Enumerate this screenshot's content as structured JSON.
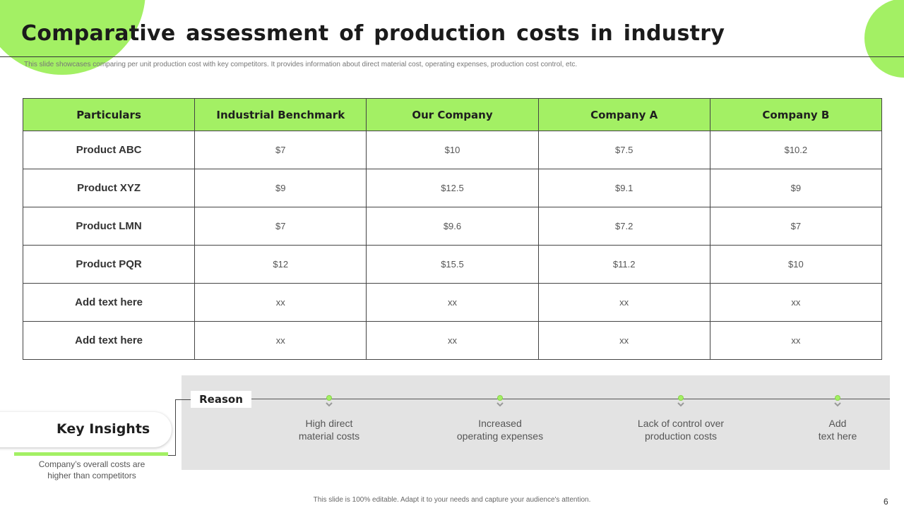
{
  "slide": {
    "title": "Comparative assessment of production costs in industry",
    "subtitle": "This slide showcases comparing per unit production cost with key competitors. It provides information about direct material cost, operating expenses, production cost control, etc.",
    "footer": "This slide is 100% editable. Adapt it to your needs and capture your audience's attention.",
    "page_number": "6"
  },
  "colors": {
    "accent": "#a3f064",
    "panel": "#e3e3e3"
  },
  "table": {
    "headers": [
      "Particulars",
      "Industrial Benchmark",
      "Our Company",
      "Company A",
      "Company B"
    ],
    "rows": [
      [
        "Product ABC",
        "$7",
        "$10",
        "$7.5",
        "$10.2"
      ],
      [
        "Product XYZ",
        "$9",
        "$12.5",
        "$9.1",
        "$9"
      ],
      [
        "Product LMN",
        "$7",
        "$9.6",
        "$7.2",
        "$7"
      ],
      [
        "Product PQR",
        "$12",
        "$15.5",
        "$11.2",
        "$10"
      ],
      [
        "Add  text here",
        "xx",
        "xx",
        "xx",
        "xx"
      ],
      [
        "Add  text here",
        "xx",
        "xx",
        "xx",
        "xx"
      ]
    ]
  },
  "reason": {
    "label": "Reason",
    "items": [
      {
        "line1": "High direct",
        "line2": "material costs"
      },
      {
        "line1": "Increased",
        "line2": "operating expenses"
      },
      {
        "line1": "Lack of control over",
        "line2": "production costs"
      },
      {
        "line1": "Add",
        "line2": "text here"
      }
    ]
  },
  "key_insights": {
    "title": "Key Insights",
    "line1": "Company’s overall  costs are",
    "line2": "higher than competitors"
  }
}
